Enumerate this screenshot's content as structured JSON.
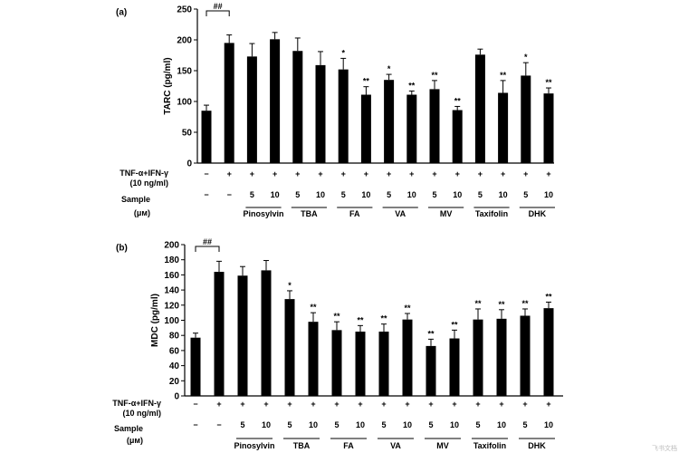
{
  "chart_data": [
    {
      "type": "bar",
      "panel_label": "(a)",
      "ylabel": "TARC (pg/ml)",
      "ylim": [
        0,
        250
      ],
      "yticks": [
        0,
        50,
        100,
        150,
        200,
        250
      ],
      "comparison_marker": "##",
      "values": [
        85,
        195,
        173,
        201,
        182,
        159,
        152,
        111,
        135,
        111,
        120,
        86,
        176,
        114,
        142,
        113
      ],
      "errors": [
        9,
        13,
        21,
        11,
        21,
        22,
        18,
        13,
        9,
        6,
        14,
        6,
        9,
        20,
        21,
        9
      ],
      "significance": [
        "",
        "",
        "",
        "",
        "",
        "",
        "*",
        "**",
        "*",
        "**",
        "**",
        "**",
        "",
        "**",
        "*",
        "**"
      ]
    },
    {
      "type": "bar",
      "panel_label": "(b)",
      "ylabel": "MDC (pg/ml)",
      "ylim": [
        0,
        200
      ],
      "yticks": [
        0,
        20,
        40,
        60,
        80,
        100,
        120,
        140,
        160,
        180,
        200
      ],
      "comparison_marker": "##",
      "values": [
        77,
        164,
        159,
        166,
        128,
        98,
        87,
        85,
        85,
        101,
        66,
        76,
        101,
        102,
        106,
        116
      ],
      "errors": [
        6,
        14,
        12,
        13,
        11,
        12,
        11,
        8,
        10,
        8,
        9,
        11,
        14,
        12,
        9,
        8
      ],
      "significance": [
        "",
        "",
        "",
        "",
        "*",
        "**",
        "**",
        "**",
        "**",
        "**",
        "**",
        "**",
        "**",
        "**",
        "**",
        "**"
      ]
    }
  ],
  "treatment_row": {
    "label_line1": "TNF-α+IFN-γ",
    "label_line2": "(10 ng/ml)",
    "signs": [
      "−",
      "+",
      "+",
      "+",
      "+",
      "+",
      "+",
      "+",
      "+",
      "+",
      "+",
      "+",
      "+",
      "+",
      "+",
      "+"
    ]
  },
  "sample_row": {
    "label_line1": "Sample",
    "label_line2": "(μм)",
    "doses": [
      "−",
      "−",
      "5",
      "10",
      "5",
      "10",
      "5",
      "10",
      "5",
      "10",
      "5",
      "10",
      "5",
      "10",
      "5",
      "10"
    ]
  },
  "groups": [
    "Pinosylvin",
    "TBA",
    "FA",
    "VA",
    "MV",
    "Taxifolin",
    "DHK"
  ],
  "watermark": "飞书文档"
}
